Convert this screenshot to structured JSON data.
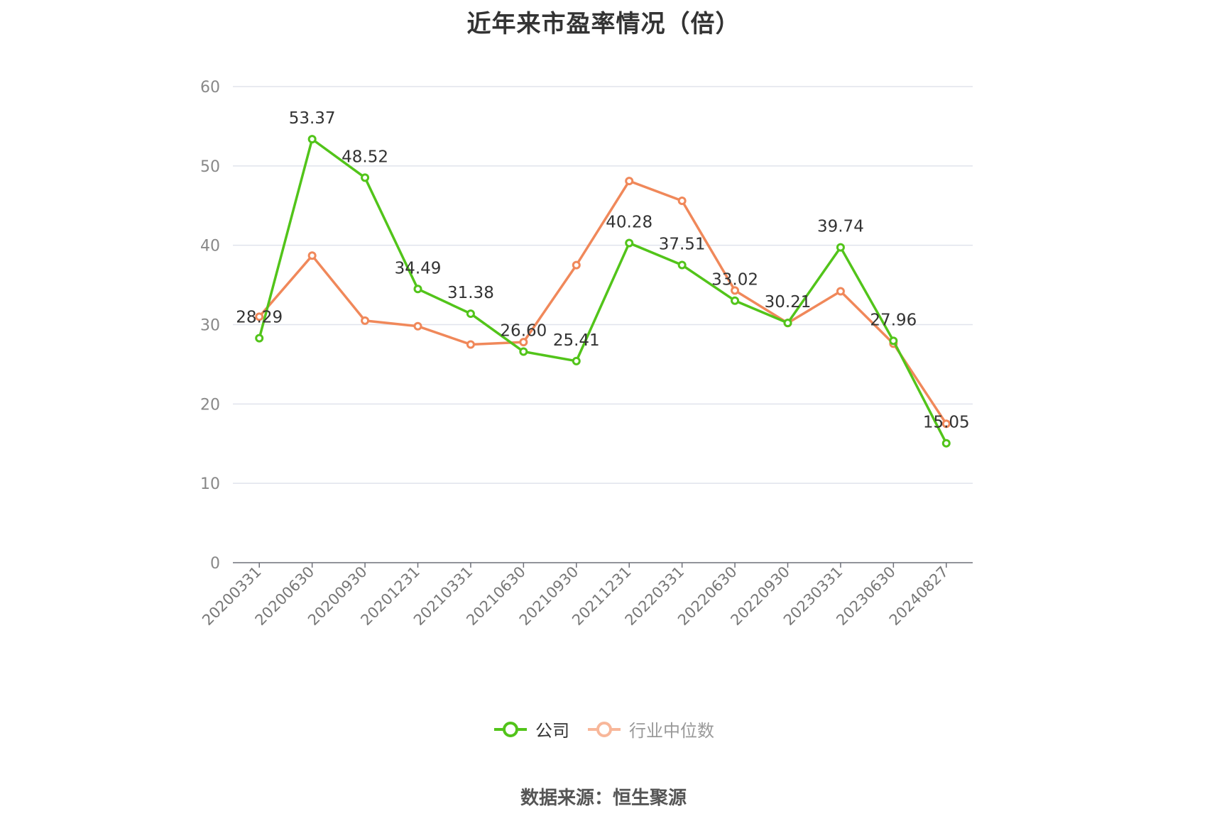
{
  "chart_data": {
    "type": "line",
    "title": "近年来市盈率情况（倍）",
    "categories": [
      "20200331",
      "20200630",
      "20200930",
      "20201231",
      "20210331",
      "20210630",
      "20210930",
      "20211231",
      "20220331",
      "20220630",
      "20220930",
      "20230331",
      "20230630",
      "20240827"
    ],
    "ylim": [
      0,
      60
    ],
    "yticks": [
      0,
      10,
      20,
      30,
      40,
      50,
      60
    ],
    "grid": true,
    "legend_position": "bottom",
    "series": [
      {
        "name": "公司",
        "color": "#52c41a",
        "show_labels": true,
        "values": [
          28.29,
          53.37,
          48.52,
          34.49,
          31.38,
          26.6,
          25.41,
          40.28,
          37.51,
          33.02,
          30.21,
          39.74,
          27.96,
          15.05
        ],
        "labels": [
          "28.29",
          "53.37",
          "48.52",
          "34.49",
          "31.38",
          "26.60",
          "25.41",
          "40.28",
          "37.51",
          "33.02",
          "30.21",
          "39.74",
          "27.96",
          "15.05"
        ]
      },
      {
        "name": "行业中位数",
        "color": "#f0885a",
        "show_labels": false,
        "values": [
          31.0,
          38.7,
          30.5,
          29.8,
          27.5,
          27.8,
          37.5,
          48.1,
          45.6,
          34.3,
          30.2,
          34.2,
          27.6,
          17.5
        ]
      }
    ]
  },
  "source": "数据来源：恒生聚源"
}
